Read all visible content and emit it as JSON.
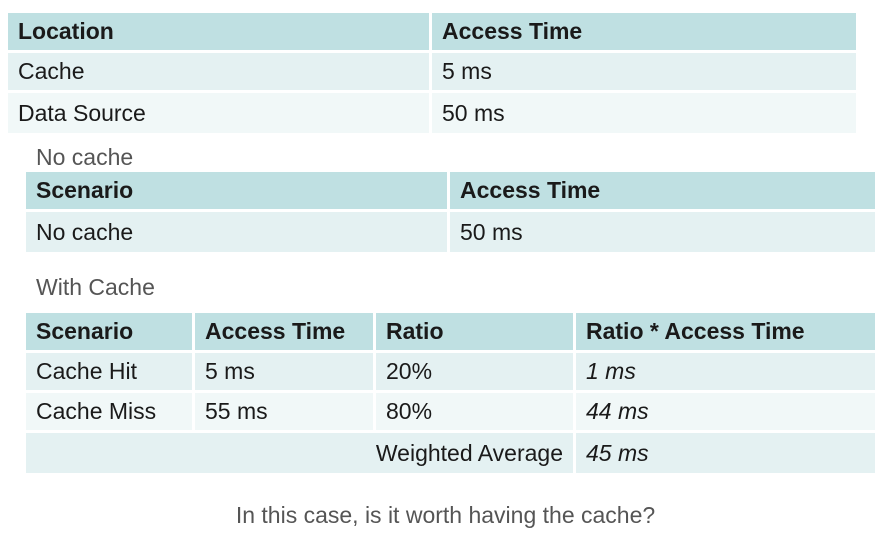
{
  "access_table": {
    "headers": [
      "Location",
      "Access Time"
    ],
    "rows": [
      [
        "Cache",
        "5 ms"
      ],
      [
        "Data Source",
        "50 ms"
      ]
    ]
  },
  "no_cache": {
    "caption": "No cache",
    "headers": [
      "Scenario",
      "Access Time"
    ],
    "rows": [
      [
        "No cache",
        "50 ms"
      ]
    ]
  },
  "with_cache": {
    "caption": "With Cache",
    "headers": [
      "Scenario",
      "Access Time",
      "Ratio",
      "Ratio * Access Time"
    ],
    "rows": [
      [
        "Cache Hit",
        "5 ms",
        "20%",
        "1 ms"
      ],
      [
        "Cache Miss",
        "55 ms",
        "80%",
        "44 ms"
      ]
    ],
    "weighted_average_label": "Weighted Average",
    "weighted_average_value": "45 ms"
  },
  "question": "In this case, is it worth having the cache?"
}
